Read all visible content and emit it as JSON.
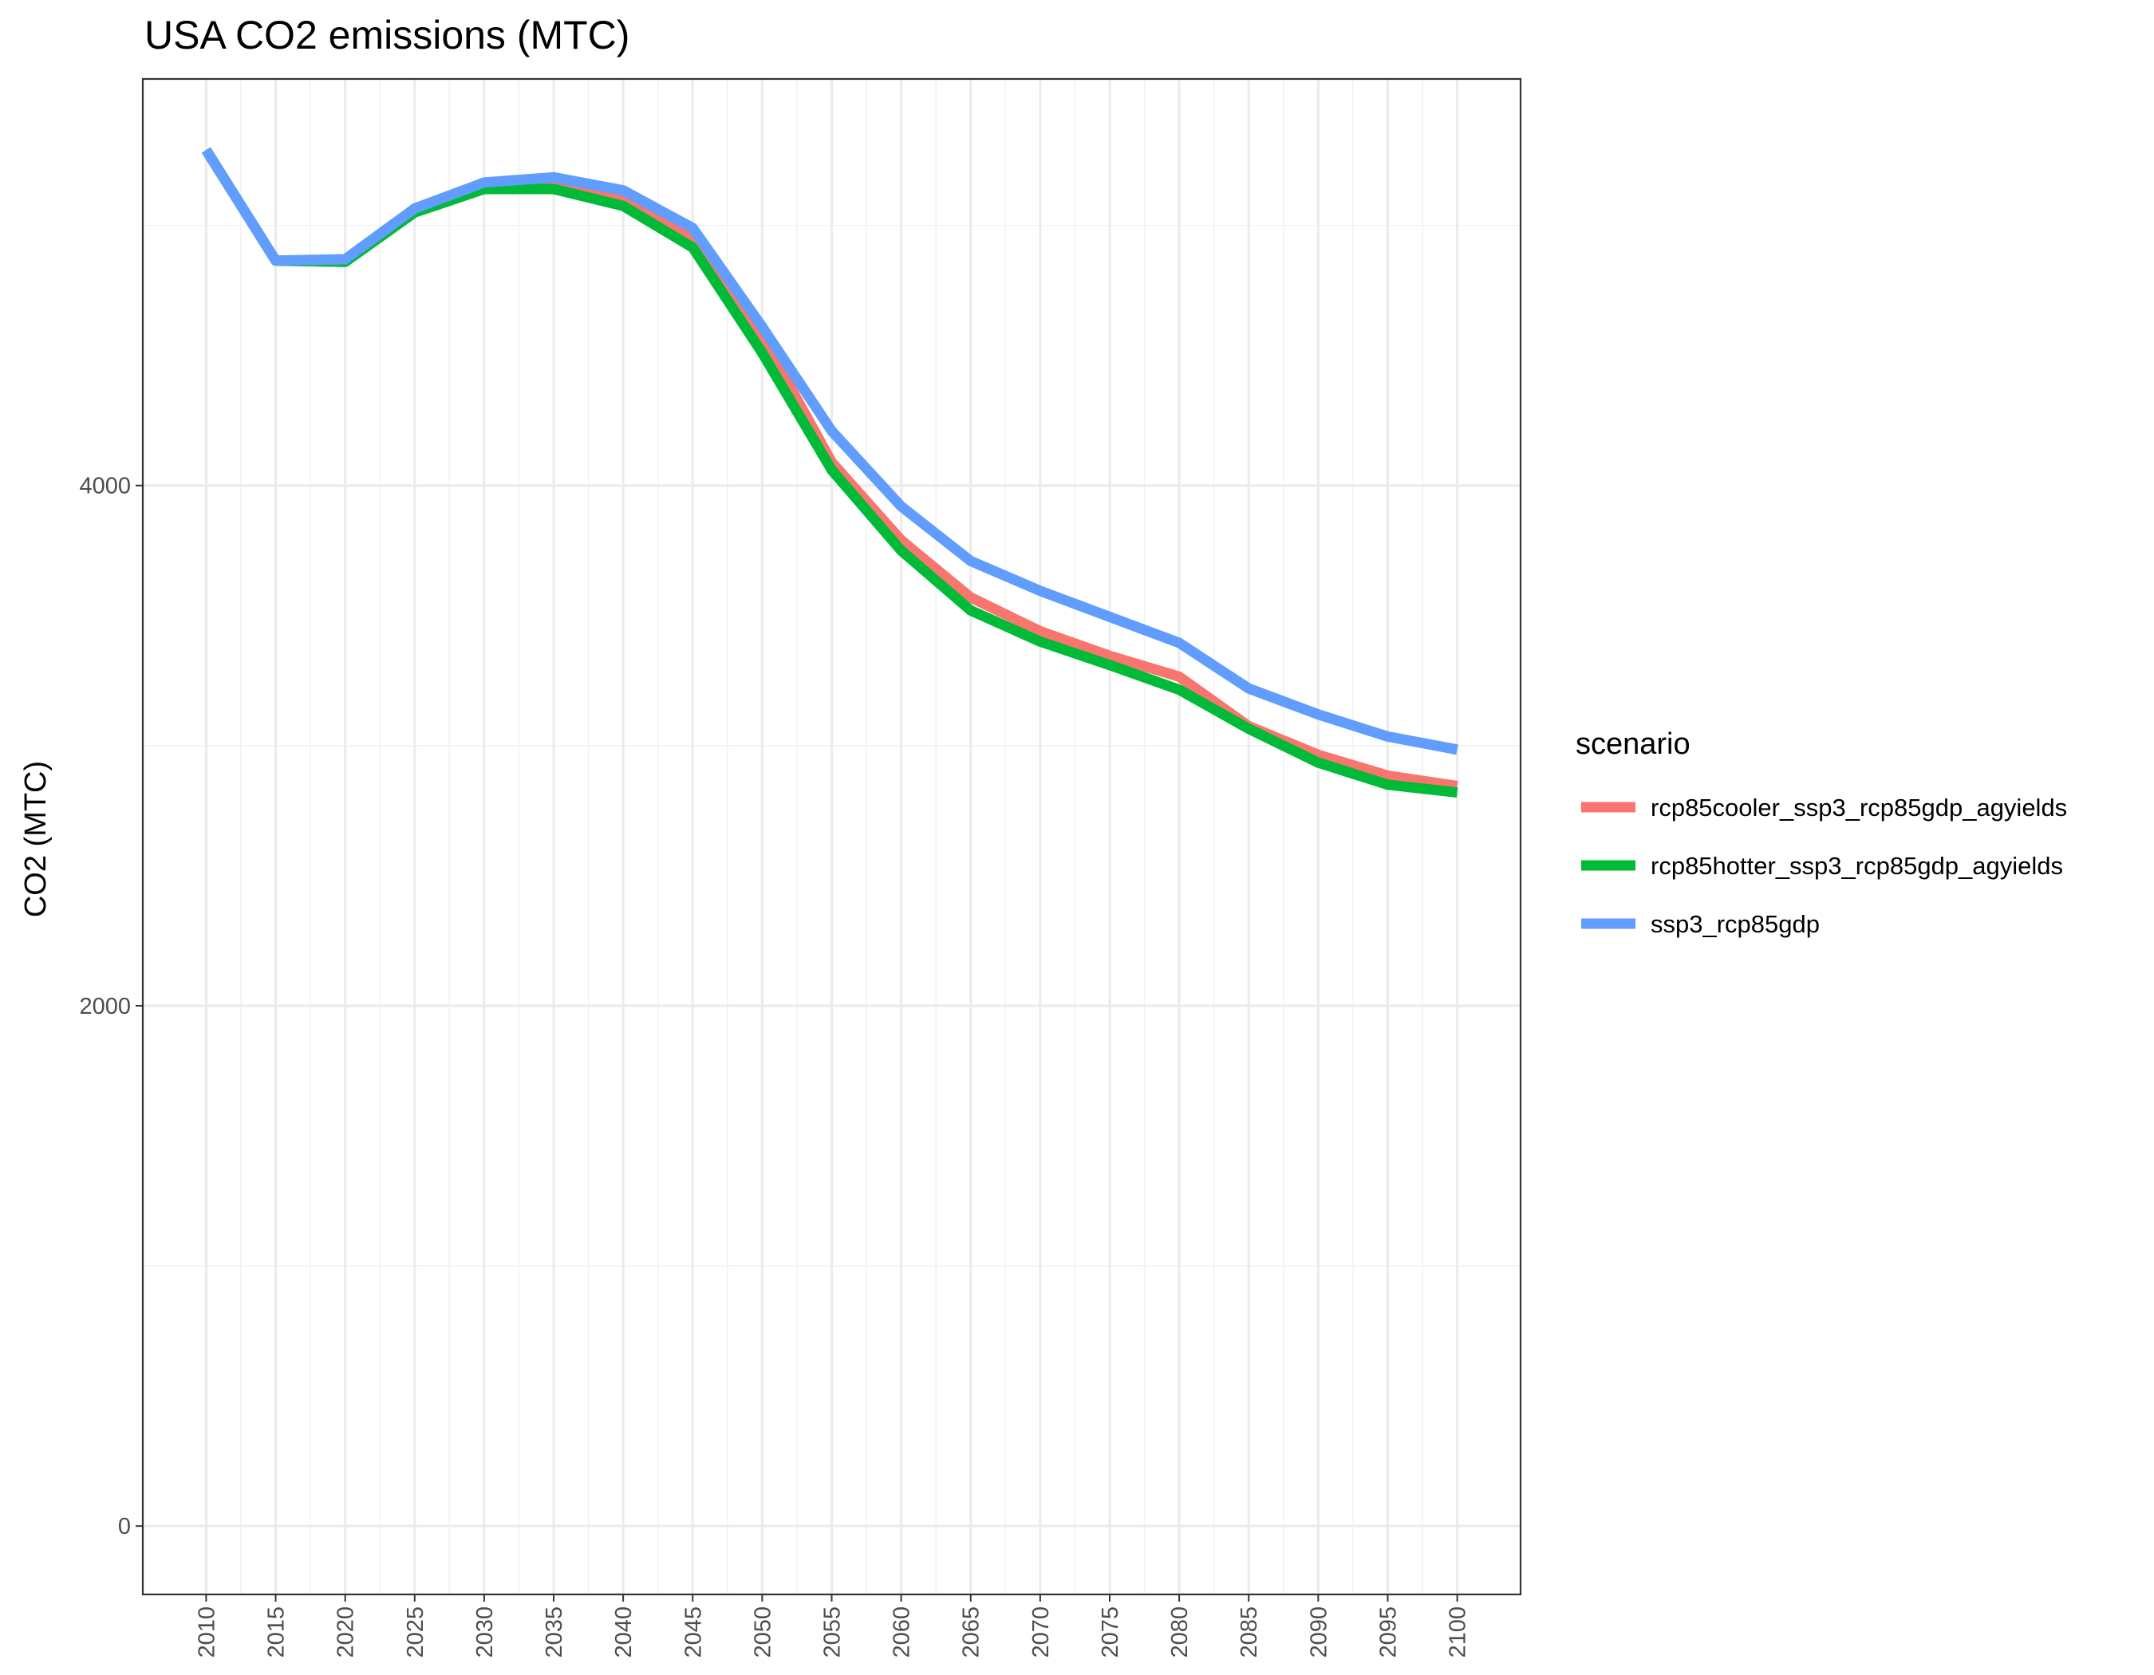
{
  "chart_data": {
    "type": "line",
    "title": "USA CO2 emissions (MTC)",
    "xlabel": "",
    "ylabel": "CO2 (MTC)",
    "x": [
      2010,
      2015,
      2020,
      2025,
      2030,
      2035,
      2040,
      2045,
      2050,
      2055,
      2060,
      2065,
      2070,
      2075,
      2080,
      2085,
      2090,
      2095,
      2100
    ],
    "x_tick_labels": [
      "2010",
      "2015",
      "2020",
      "2025",
      "2030",
      "2035",
      "2040",
      "2045",
      "2050",
      "2055",
      "2060",
      "2065",
      "2070",
      "2075",
      "2080",
      "2085",
      "2090",
      "2095",
      "2100"
    ],
    "y_ticks": [
      0,
      2000,
      4000
    ],
    "y_tick_labels": [
      "0",
      "2000",
      "4000"
    ],
    "ylim": [
      -260,
      5560
    ],
    "xlim": [
      2005.5,
      2104.5
    ],
    "grid": true,
    "legend": {
      "title": "scenario",
      "position": "right"
    },
    "series": [
      {
        "name": "rcp85cooler_ssp3_rcp85gdp_agyields",
        "color": "#f8766d",
        "values": [
          5290,
          4865,
          4860,
          5065,
          5150,
          5165,
          5110,
          4960,
          4575,
          4090,
          3790,
          3570,
          3440,
          3345,
          3265,
          3075,
          2965,
          2885,
          2845
        ]
      },
      {
        "name": "rcp85hotter_ssp3_rcp85gdp_agyields",
        "color": "#00ba38",
        "values": [
          5290,
          4865,
          4860,
          5050,
          5140,
          5140,
          5075,
          4915,
          4510,
          4060,
          3750,
          3520,
          3400,
          3310,
          3215,
          3065,
          2935,
          2850,
          2820
        ]
      },
      {
        "name": "ssp3_rcp85gdp",
        "color": "#619cff",
        "values": [
          5290,
          4865,
          4870,
          5065,
          5165,
          5185,
          5135,
          4990,
          4610,
          4210,
          3920,
          3710,
          3595,
          3495,
          3395,
          3220,
          3120,
          3035,
          2985
        ]
      }
    ]
  }
}
